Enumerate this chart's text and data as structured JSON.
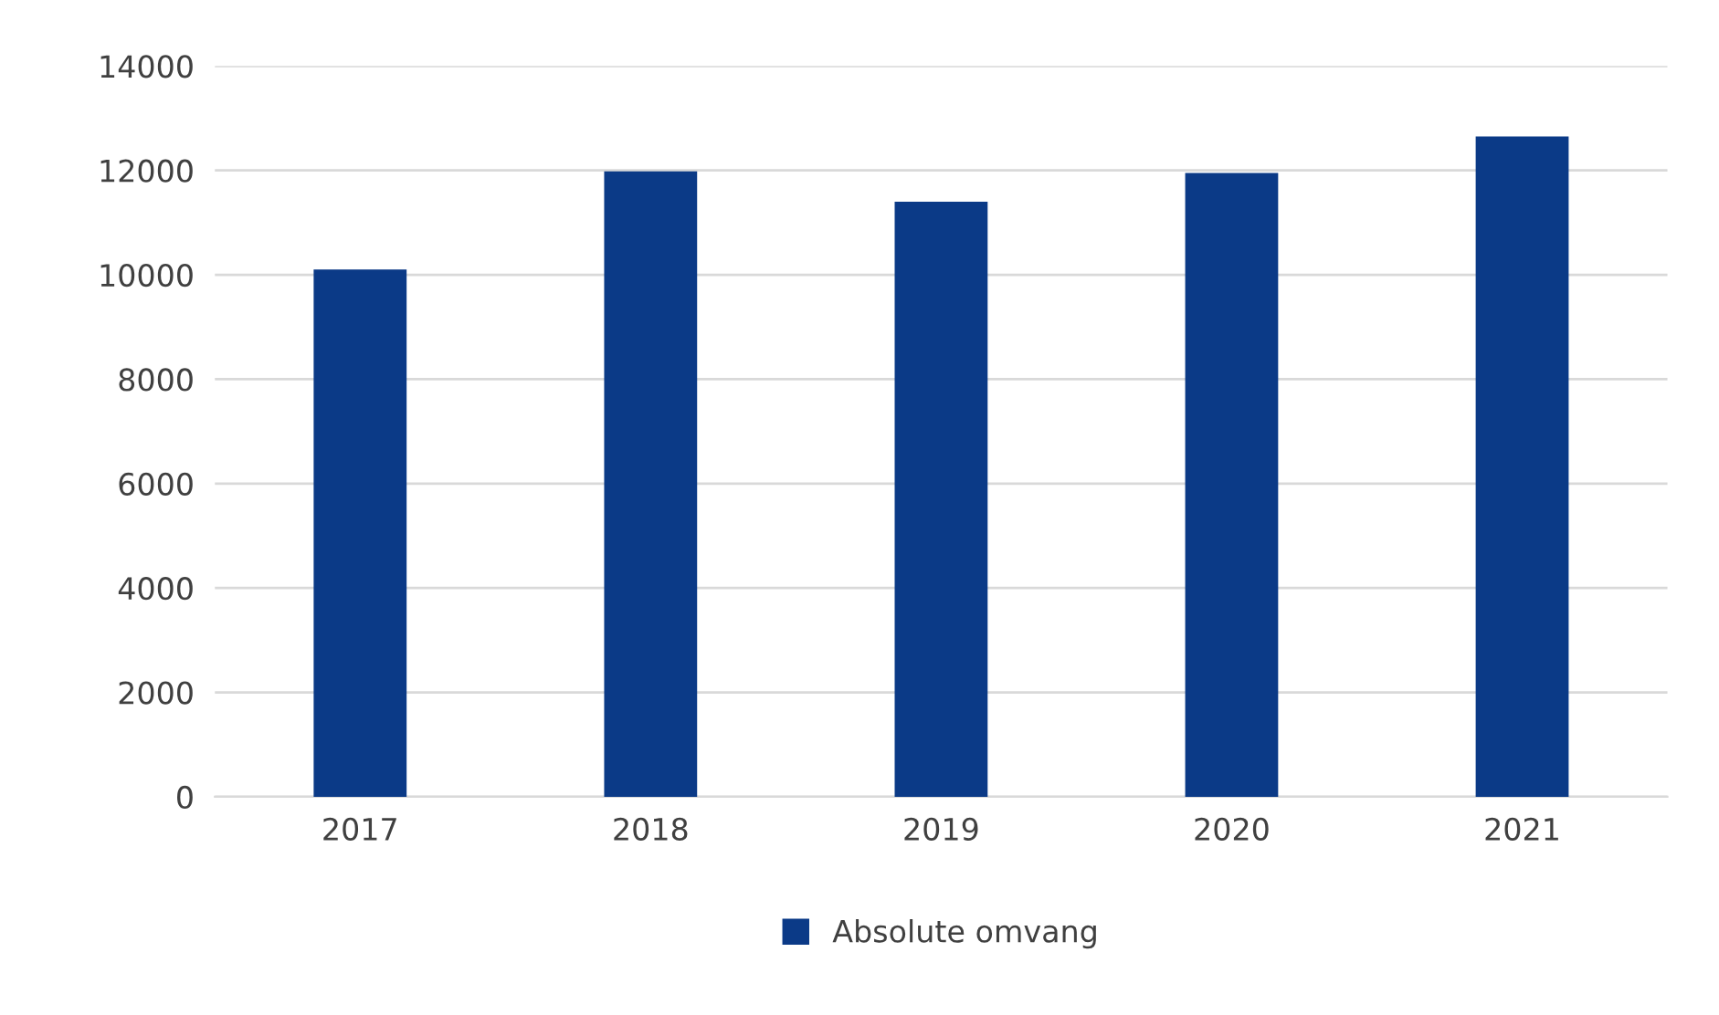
{
  "chart_data": {
    "type": "bar",
    "categories": [
      "2017",
      "2018",
      "2019",
      "2020",
      "2021"
    ],
    "series": [
      {
        "name": "Absolute omvang",
        "color": "#0b3a87",
        "values": [
          10100,
          11980,
          11400,
          11950,
          12650
        ]
      }
    ],
    "ylim": [
      0,
      14000
    ],
    "yticks": [
      0,
      2000,
      4000,
      6000,
      8000,
      10000,
      12000,
      14000
    ],
    "grid": "y",
    "legend": "bottom"
  }
}
